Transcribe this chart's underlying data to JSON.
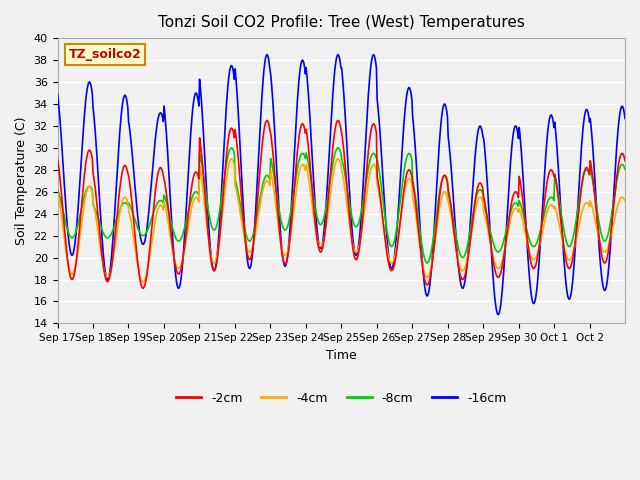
{
  "title": "Tonzi Soil CO2 Profile: Tree (West) Temperatures",
  "xlabel": "Time",
  "ylabel": "Soil Temperature (C)",
  "ylim": [
    14,
    40
  ],
  "annotation_label": "TZ_soilco2",
  "annotation_bg": "#ffffcc",
  "annotation_border": "#cc8800",
  "legend_entries": [
    "-2cm",
    "-4cm",
    "-8cm",
    "-16cm"
  ],
  "legend_colors": [
    "#ff0000",
    "#ffaa00",
    "#00cc00",
    "#0000ff"
  ],
  "x_tick_labels": [
    "Sep 17",
    "Sep 18",
    "Sep 19",
    "Sep 20",
    "Sep 21",
    "Sep 22",
    "Sep 23",
    "Sep 24",
    "Sep 25",
    "Sep 26",
    "Sep 27",
    "Sep 28",
    "Sep 29",
    "Sep 30",
    "Oct 1",
    "Oct 2"
  ],
  "yticks": [
    14,
    16,
    18,
    20,
    22,
    24,
    26,
    28,
    30,
    32,
    34,
    36,
    38,
    40
  ],
  "n_days": 16,
  "pts_per_day": 48,
  "series": {
    "depth_16cm": {
      "color": "#0000ff",
      "label": "-16cm",
      "daily_min": [
        20.2,
        18.0,
        21.2,
        17.2,
        18.8,
        19.0,
        19.2,
        20.8,
        20.2,
        19.0,
        16.5,
        17.2,
        14.8,
        15.8,
        16.2,
        17.0
      ],
      "daily_max": [
        36.0,
        34.8,
        33.2,
        35.0,
        37.5,
        38.5,
        38.0,
        38.5,
        38.5,
        35.5,
        34.0,
        32.0,
        32.0,
        33.0,
        33.5,
        33.8
      ]
    },
    "depth_8cm": {
      "color": "#00cc00",
      "label": "-8cm",
      "daily_min": [
        21.8,
        21.8,
        22.0,
        21.5,
        22.5,
        21.5,
        22.5,
        23.0,
        22.8,
        21.0,
        19.5,
        20.0,
        20.5,
        21.0,
        21.0,
        21.5
      ],
      "daily_max": [
        26.5,
        25.0,
        25.2,
        26.0,
        30.0,
        27.5,
        29.5,
        30.0,
        29.5,
        29.5,
        27.5,
        26.2,
        25.0,
        25.5,
        28.0,
        28.5
      ]
    },
    "depth_4cm": {
      "color": "#ffaa00",
      "label": "-4cm",
      "daily_min": [
        18.5,
        18.2,
        17.8,
        19.0,
        19.5,
        20.5,
        20.2,
        21.0,
        20.5,
        19.5,
        18.2,
        18.8,
        19.0,
        19.8,
        19.8,
        20.5
      ],
      "daily_max": [
        26.5,
        25.5,
        24.8,
        25.5,
        29.0,
        27.0,
        28.5,
        29.0,
        28.5,
        27.2,
        26.0,
        25.5,
        24.5,
        24.8,
        25.0,
        25.5
      ]
    },
    "depth_2cm": {
      "color": "#ff0000",
      "label": "-2cm",
      "daily_min": [
        18.0,
        17.8,
        17.2,
        18.5,
        18.8,
        19.8,
        19.4,
        20.5,
        19.8,
        18.8,
        17.5,
        18.0,
        18.2,
        19.0,
        19.0,
        19.5
      ],
      "daily_max": [
        29.8,
        28.4,
        28.2,
        27.8,
        31.8,
        32.5,
        32.2,
        32.5,
        32.2,
        28.0,
        27.5,
        26.8,
        26.0,
        28.0,
        28.2,
        29.5
      ]
    }
  }
}
